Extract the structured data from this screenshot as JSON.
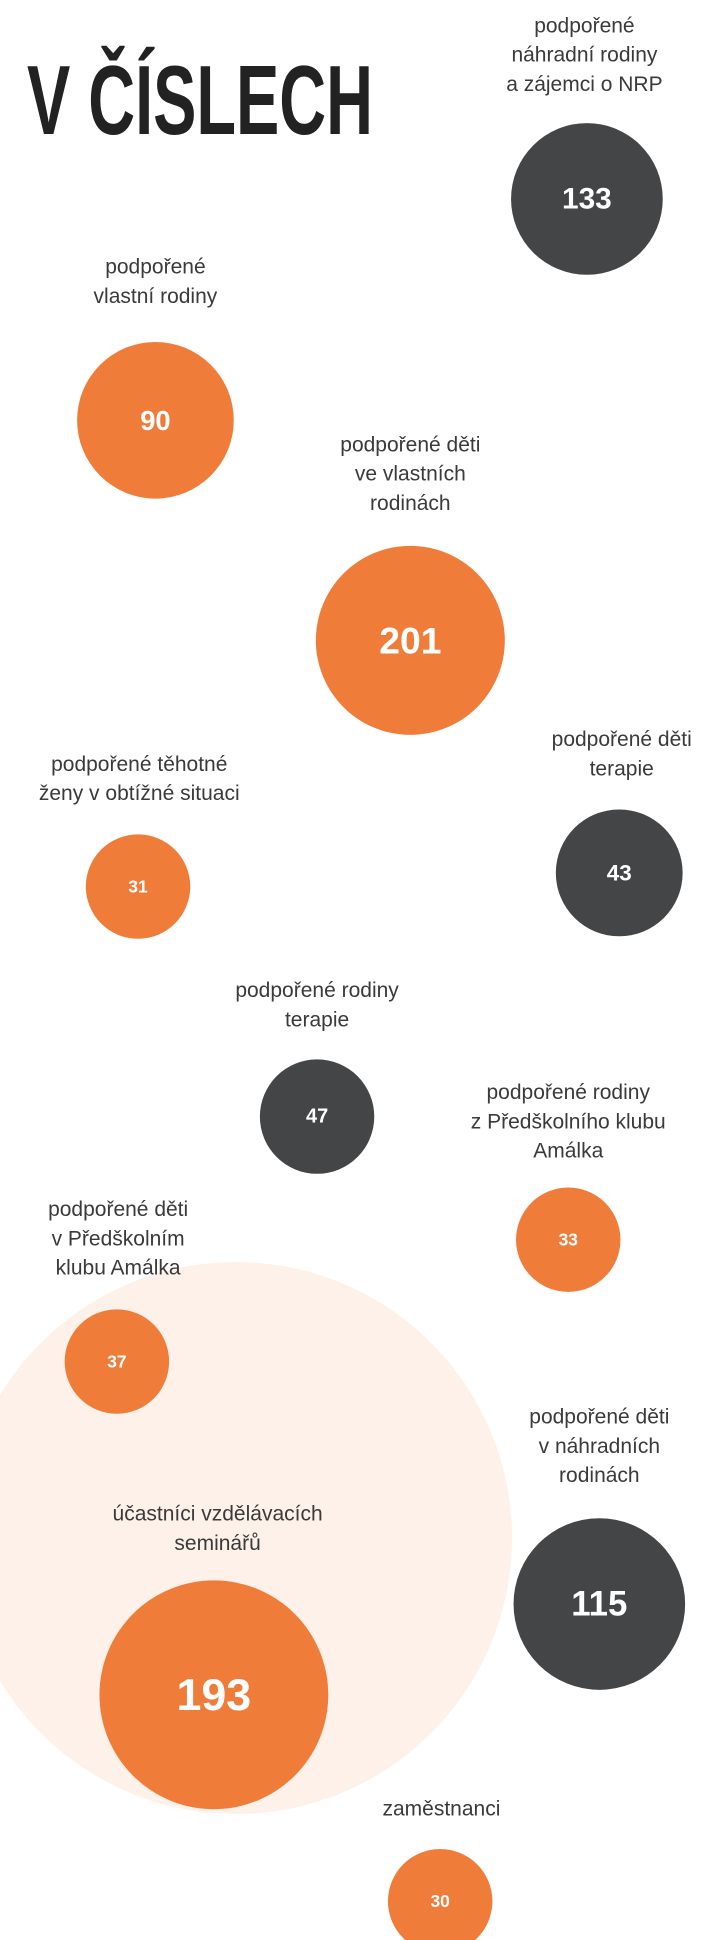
{
  "title": "V ČÍSLECH",
  "items": [
    {
      "label": [
        "podpořené",
        "náhradní rodiny",
        "a zájemci o NRP"
      ],
      "value": "133",
      "color": "#444547"
    },
    {
      "label": [
        "podpořené",
        "vlastní rodiny"
      ],
      "value": "90",
      "color": "#f07c3a"
    },
    {
      "label": [
        "podpořené děti",
        "ve vlastních",
        "rodinách"
      ],
      "value": "201",
      "color": "#f07c3a"
    },
    {
      "label": [
        "podpořené těhotné",
        "ženy v obtížné situaci"
      ],
      "value": "31",
      "color": "#f07c3a"
    },
    {
      "label": [
        "podpořené děti",
        "terapie"
      ],
      "value": "43",
      "color": "#444547"
    },
    {
      "label": [
        "podpořené rodiny",
        "terapie"
      ],
      "value": "47",
      "color": "#444547"
    },
    {
      "label": [
        "podpořené rodiny",
        "z Předškolního klubu",
        "Amálka"
      ],
      "value": "33",
      "color": "#f07c3a"
    },
    {
      "label": [
        "podpořené děti",
        "v Předškolním",
        "klubu Amálka"
      ],
      "value": "37",
      "color": "#f07c3a"
    },
    {
      "label": [
        "podpořené děti",
        "v náhradních",
        "rodinách"
      ],
      "value": "115",
      "color": "#444547"
    },
    {
      "label": [
        "účastníci vzdělávacích",
        "seminářů"
      ],
      "value": "193",
      "color": "#f07c3a"
    },
    {
      "label": [
        "zaměstnanci"
      ],
      "value": "30",
      "color": "#f07c3a"
    }
  ]
}
